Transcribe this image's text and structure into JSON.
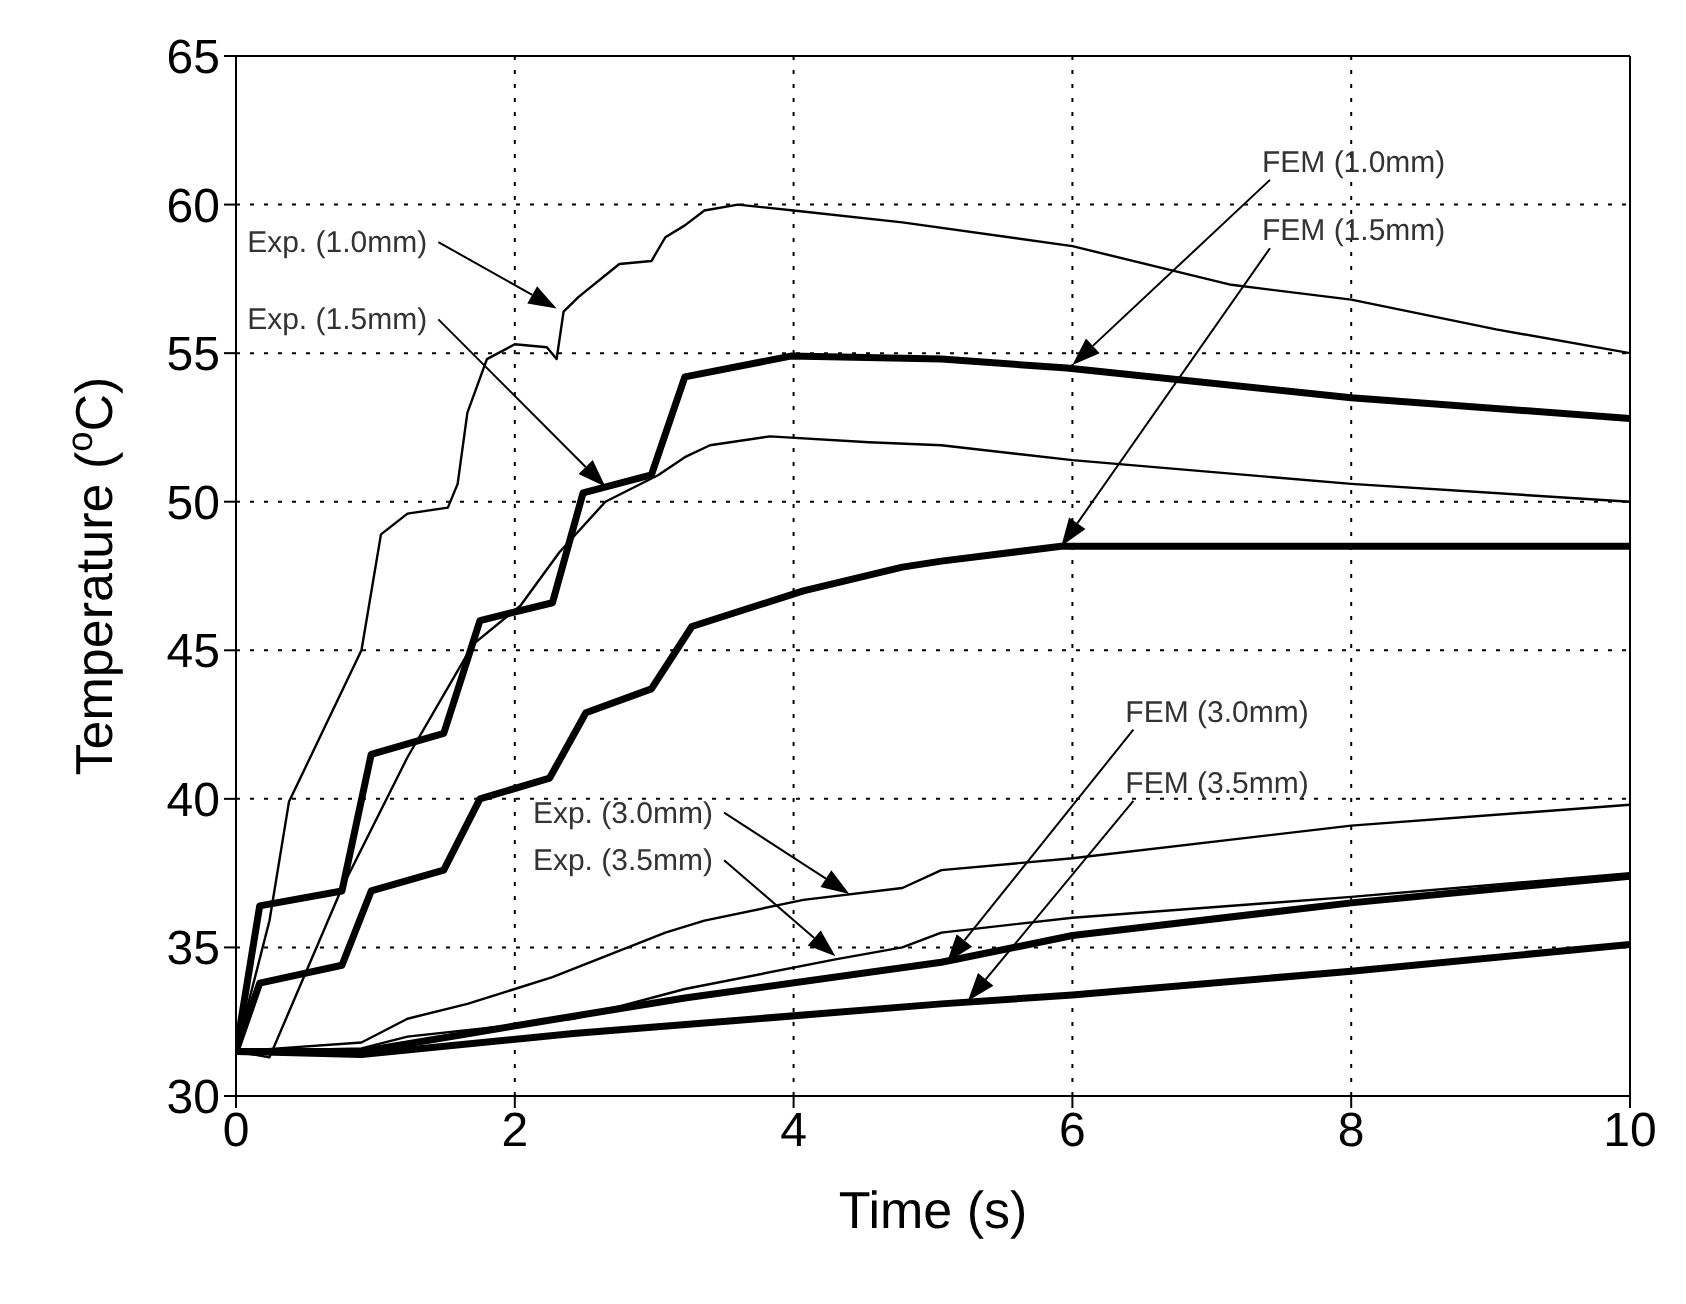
{
  "chart_data": {
    "type": "line",
    "xlabel": "Time (s)",
    "ylabel": "Temperature ($^{o}$C)",
    "xlim": [
      0,
      10
    ],
    "xticks": [
      0,
      2,
      4,
      6,
      8,
      10
    ],
    "ylim": [
      30,
      65
    ],
    "yticks": [
      30,
      35,
      40,
      45,
      50,
      55,
      60,
      65
    ],
    "grid": true,
    "marker": "none",
    "line_style": "solid",
    "series": [
      {
        "color": "#000000",
        "x": [
          0,
          0.24,
          0.38,
          0.9,
          1.04,
          1.23,
          1.52,
          1.59,
          1.66,
          1.8,
          2.0,
          2.23,
          2.3,
          2.35,
          2.46,
          2.75,
          2.98,
          3.08,
          3.22,
          3.36,
          3.6,
          4.0,
          4.78,
          6.0,
          7.14,
          8.0,
          9.04,
          10
        ],
        "values": [
          31.5,
          35.9,
          39.9,
          45.0,
          48.9,
          49.6,
          49.8,
          50.6,
          53,
          54.8,
          55.3,
          55.2,
          54.8,
          56.4,
          56.9,
          58,
          58.1,
          58.9,
          59.3,
          59.8,
          60,
          59.8,
          59.4,
          58.6,
          57.3,
          56.8,
          55.8,
          55.0
        ]
      },
      {
        "color": "#000000",
        "x": [
          0,
          0.24,
          0.76,
          1.23,
          1.7,
          2.04,
          2.32,
          2.65,
          3.03,
          3.22,
          3.4,
          3.83,
          4.54,
          5.06,
          6.0,
          8.0,
          10
        ],
        "values": [
          31.5,
          31.3,
          37,
          41.4,
          45.2,
          46.5,
          48.3,
          50,
          50.9,
          51.5,
          51.9,
          52.2,
          52,
          51.9,
          51.4,
          50.6,
          50
        ]
      },
      {
        "color": "#000000",
        "x": [
          0,
          0.17,
          0.76,
          0.97,
          1.49,
          1.75,
          2.27,
          2.49,
          2.98,
          3.22,
          3.98,
          5.06,
          5.96,
          8.0,
          10
        ],
        "values": [
          31.5,
          36.4,
          36.9,
          41.5,
          42.2,
          46,
          46.6,
          50.3,
          50.9,
          54.2,
          54.9,
          54.8,
          54.5,
          53.5,
          52.8
        ]
      },
      {
        "color": "#000000",
        "x": [
          0,
          0.17,
          0.76,
          0.97,
          1.49,
          1.75,
          2.25,
          2.51,
          2.98,
          3.27,
          4.07,
          4.78,
          5.06,
          5.92,
          6.77,
          10
        ],
        "values": [
          31.5,
          33.8,
          34.4,
          36.9,
          37.6,
          40,
          40.7,
          42.9,
          43.7,
          45.8,
          47,
          47.8,
          48,
          48.5,
          48.5,
          48.5
        ]
      },
      {
        "color": "#000000",
        "x": [
          0,
          0.9,
          1.23,
          1.66,
          2.27,
          3.08,
          3.36,
          4.07,
          4.78,
          5.06,
          6.0,
          8.0,
          10
        ],
        "values": [
          31.5,
          31.8,
          32.6,
          33.1,
          34,
          35.5,
          35.9,
          36.6,
          37,
          37.6,
          38,
          39.1,
          39.8
        ]
      },
      {
        "color": "#000000",
        "x": [
          0,
          0.9,
          1.23,
          2.42,
          3.22,
          4.3,
          4.78,
          5.06,
          6.0,
          8.0,
          10
        ],
        "values": [
          31.5,
          31.6,
          32,
          32.6,
          33.6,
          34.6,
          35,
          35.5,
          36,
          36.7,
          37.5
        ]
      },
      {
        "color": "#000000",
        "x": [
          0,
          0.9,
          2.18,
          3.22,
          5.06,
          6.0,
          8.0,
          10
        ],
        "values": [
          31.5,
          31.5,
          32.5,
          33.3,
          34.5,
          35.4,
          36.5,
          37.4
        ]
      },
      {
        "color": "#000000",
        "x": [
          0,
          0.9,
          2.42,
          5.06,
          6.0,
          8.0,
          10
        ],
        "values": [
          31.5,
          31.4,
          32.1,
          33.1,
          33.4,
          34.2,
          35.1
        ]
      }
    ],
    "annotations": [
      "Exp. (1.0mm)",
      "Exp. (1.5mm)",
      "FEM (1.0mm)",
      "FEM (1.5mm)",
      "Exp. (3.0mm)",
      "Exp. (3.5mm)",
      "FEM (3.0mm)",
      "FEM (3.5mm)"
    ]
  }
}
